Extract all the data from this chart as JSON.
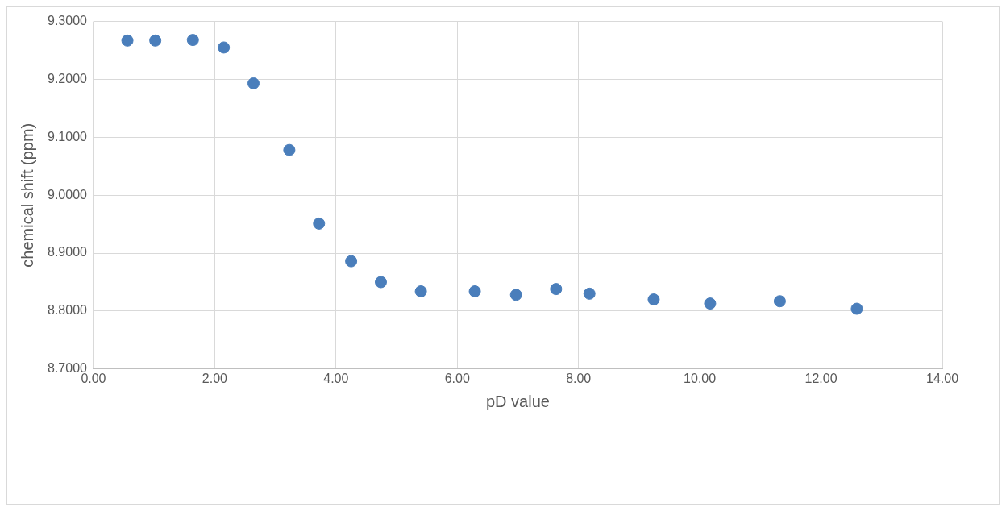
{
  "chart_data": {
    "type": "scatter",
    "xlabel": "pD value",
    "ylabel": "chemical shift (ppm)",
    "x": [
      0.56,
      1.02,
      1.64,
      2.15,
      2.64,
      3.23,
      3.72,
      4.25,
      4.74,
      5.4,
      6.29,
      6.97,
      7.63,
      8.18,
      9.24,
      10.17,
      11.32,
      12.59
    ],
    "series": [
      {
        "color": "#4a7ebb",
        "values": [
          9.267,
          9.267,
          9.268,
          9.255,
          9.193,
          9.078,
          8.951,
          8.886,
          8.85,
          8.834,
          8.834,
          8.828,
          8.838,
          8.83,
          8.82,
          8.813,
          8.817,
          8.804
        ]
      }
    ],
    "xlim": [
      0,
      14
    ],
    "xticks": [
      {
        "value": 0,
        "label": "0.00"
      },
      {
        "value": 2,
        "label": "2.00"
      },
      {
        "value": 4,
        "label": "4.00"
      },
      {
        "value": 6,
        "label": "6.00"
      },
      {
        "value": 8,
        "label": "8.00"
      },
      {
        "value": 10,
        "label": "10.00"
      },
      {
        "value": 12,
        "label": "12.00"
      },
      {
        "value": 14,
        "label": "14.00"
      }
    ],
    "ylim": [
      8.7,
      9.3
    ],
    "yticks": [
      {
        "value": 8.7,
        "label": "8.7000"
      },
      {
        "value": 8.8,
        "label": "8.8000"
      },
      {
        "value": 8.9,
        "label": "8.9000"
      },
      {
        "value": 9.0,
        "label": "9.0000"
      },
      {
        "value": 9.1,
        "label": "9.1000"
      },
      {
        "value": 9.2,
        "label": "9.2000"
      },
      {
        "value": 9.3,
        "label": "9.3000"
      }
    ],
    "grid": true,
    "legend": false,
    "marker": "circle"
  }
}
